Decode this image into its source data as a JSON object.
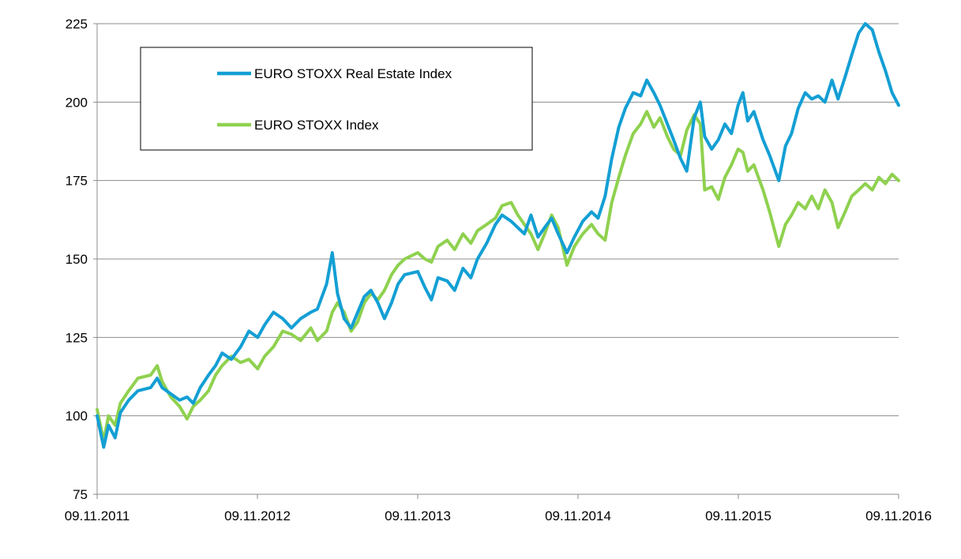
{
  "chart_data": {
    "type": "line",
    "title": "",
    "xlabel": "",
    "ylabel": "",
    "x_ticks": [
      "09.11.2011",
      "09.11.2012",
      "09.11.2013",
      "09.11.2014",
      "09.11.2015",
      "09.11.2016"
    ],
    "y_ticks": [
      75,
      100,
      125,
      150,
      175,
      200,
      225
    ],
    "ylim": [
      75,
      225
    ],
    "xlim": [
      "2011-11-09",
      "2016-11-09"
    ],
    "grid": "horizontal",
    "legend_position": "top-left",
    "series": [
      {
        "name": "EURO STOXX Real Estate Index",
        "color": "#139fd4",
        "points": [
          [
            "2011-11-09",
            100
          ],
          [
            "2011-11-24",
            90
          ],
          [
            "2011-12-05",
            97
          ],
          [
            "2011-12-20",
            93
          ],
          [
            "2012-01-01",
            101
          ],
          [
            "2012-01-20",
            105
          ],
          [
            "2012-02-10",
            108
          ],
          [
            "2012-03-10",
            109
          ],
          [
            "2012-03-25",
            112
          ],
          [
            "2012-04-05",
            109
          ],
          [
            "2012-04-25",
            107
          ],
          [
            "2012-05-15",
            105
          ],
          [
            "2012-06-01",
            106
          ],
          [
            "2012-06-15",
            104
          ],
          [
            "2012-07-01",
            109
          ],
          [
            "2012-07-20",
            113
          ],
          [
            "2012-08-05",
            116
          ],
          [
            "2012-08-20",
            120
          ],
          [
            "2012-09-10",
            118
          ],
          [
            "2012-10-01",
            122
          ],
          [
            "2012-10-20",
            127
          ],
          [
            "2012-11-09",
            125
          ],
          [
            "2012-11-25",
            129
          ],
          [
            "2012-12-15",
            133
          ],
          [
            "2013-01-05",
            131
          ],
          [
            "2013-01-25",
            128
          ],
          [
            "2013-02-15",
            131
          ],
          [
            "2013-03-10",
            133
          ],
          [
            "2013-03-25",
            134
          ],
          [
            "2013-04-15",
            142
          ],
          [
            "2013-04-28",
            152
          ],
          [
            "2013-05-10",
            139
          ],
          [
            "2013-05-25",
            131
          ],
          [
            "2013-06-10",
            128
          ],
          [
            "2013-06-25",
            133
          ],
          [
            "2013-07-10",
            138
          ],
          [
            "2013-07-25",
            140
          ],
          [
            "2013-08-10",
            136
          ],
          [
            "2013-08-25",
            131
          ],
          [
            "2013-09-10",
            136
          ],
          [
            "2013-09-25",
            142
          ],
          [
            "2013-10-10",
            145
          ],
          [
            "2013-11-09",
            146
          ],
          [
            "2013-11-25",
            141
          ],
          [
            "2013-12-10",
            137
          ],
          [
            "2013-12-25",
            144
          ],
          [
            "2014-01-15",
            143
          ],
          [
            "2014-02-01",
            140
          ],
          [
            "2014-02-20",
            147
          ],
          [
            "2014-03-10",
            144
          ],
          [
            "2014-03-25",
            150
          ],
          [
            "2014-04-15",
            155
          ],
          [
            "2014-05-05",
            161
          ],
          [
            "2014-05-20",
            164
          ],
          [
            "2014-06-10",
            162
          ],
          [
            "2014-06-25",
            160
          ],
          [
            "2014-07-10",
            158
          ],
          [
            "2014-07-25",
            164
          ],
          [
            "2014-08-10",
            157
          ],
          [
            "2014-08-25",
            160
          ],
          [
            "2014-09-10",
            163
          ],
          [
            "2014-09-25",
            158
          ],
          [
            "2014-10-15",
            152
          ],
          [
            "2014-11-01",
            157
          ],
          [
            "2014-11-20",
            162
          ],
          [
            "2014-12-10",
            165
          ],
          [
            "2014-12-25",
            163
          ],
          [
            "2015-01-10",
            170
          ],
          [
            "2015-01-25",
            182
          ],
          [
            "2015-02-10",
            192
          ],
          [
            "2015-02-25",
            198
          ],
          [
            "2015-03-15",
            203
          ],
          [
            "2015-04-01",
            202
          ],
          [
            "2015-04-15",
            207
          ],
          [
            "2015-05-01",
            203
          ],
          [
            "2015-05-15",
            199
          ],
          [
            "2015-06-01",
            193
          ],
          [
            "2015-06-15",
            188
          ],
          [
            "2015-07-01",
            182
          ],
          [
            "2015-07-15",
            178
          ],
          [
            "2015-08-01",
            195
          ],
          [
            "2015-08-15",
            200
          ],
          [
            "2015-08-25",
            189
          ],
          [
            "2015-09-10",
            185
          ],
          [
            "2015-09-25",
            188
          ],
          [
            "2015-10-10",
            193
          ],
          [
            "2015-10-25",
            190
          ],
          [
            "2015-11-09",
            199
          ],
          [
            "2015-11-20",
            203
          ],
          [
            "2015-12-01",
            194
          ],
          [
            "2015-12-15",
            197
          ],
          [
            "2016-01-05",
            188
          ],
          [
            "2016-01-20",
            183
          ],
          [
            "2016-02-10",
            175
          ],
          [
            "2016-02-25",
            186
          ],
          [
            "2016-03-10",
            190
          ],
          [
            "2016-03-25",
            198
          ],
          [
            "2016-04-10",
            203
          ],
          [
            "2016-04-25",
            201
          ],
          [
            "2016-05-10",
            202
          ],
          [
            "2016-05-25",
            200
          ],
          [
            "2016-06-10",
            207
          ],
          [
            "2016-06-24",
            201
          ],
          [
            "2016-07-10",
            208
          ],
          [
            "2016-07-25",
            215
          ],
          [
            "2016-08-10",
            222
          ],
          [
            "2016-08-25",
            225
          ],
          [
            "2016-09-10",
            223
          ],
          [
            "2016-09-25",
            216
          ],
          [
            "2016-10-10",
            210
          ],
          [
            "2016-10-25",
            203
          ],
          [
            "2016-11-09",
            199
          ]
        ]
      },
      {
        "name": "EURO STOXX Index",
        "color": "#8fd14f",
        "points": [
          [
            "2011-11-09",
            102
          ],
          [
            "2011-11-24",
            92
          ],
          [
            "2011-12-05",
            100
          ],
          [
            "2011-12-20",
            97
          ],
          [
            "2012-01-01",
            104
          ],
          [
            "2012-01-20",
            108
          ],
          [
            "2012-02-10",
            112
          ],
          [
            "2012-03-10",
            113
          ],
          [
            "2012-03-25",
            116
          ],
          [
            "2012-04-05",
            111
          ],
          [
            "2012-04-25",
            106
          ],
          [
            "2012-05-15",
            103
          ],
          [
            "2012-06-01",
            99
          ],
          [
            "2012-06-15",
            103
          ],
          [
            "2012-07-01",
            105
          ],
          [
            "2012-07-20",
            108
          ],
          [
            "2012-08-05",
            113
          ],
          [
            "2012-08-20",
            116
          ],
          [
            "2012-09-10",
            119
          ],
          [
            "2012-10-01",
            117
          ],
          [
            "2012-10-20",
            118
          ],
          [
            "2012-11-09",
            115
          ],
          [
            "2012-11-25",
            119
          ],
          [
            "2012-12-15",
            122
          ],
          [
            "2013-01-05",
            127
          ],
          [
            "2013-01-25",
            126
          ],
          [
            "2013-02-15",
            124
          ],
          [
            "2013-03-10",
            128
          ],
          [
            "2013-03-25",
            124
          ],
          [
            "2013-04-15",
            127
          ],
          [
            "2013-04-28",
            133
          ],
          [
            "2013-05-10",
            136
          ],
          [
            "2013-05-25",
            133
          ],
          [
            "2013-06-10",
            127
          ],
          [
            "2013-06-25",
            130
          ],
          [
            "2013-07-10",
            136
          ],
          [
            "2013-07-25",
            139
          ],
          [
            "2013-08-10",
            137
          ],
          [
            "2013-08-25",
            140
          ],
          [
            "2013-09-10",
            145
          ],
          [
            "2013-09-25",
            148
          ],
          [
            "2013-10-10",
            150
          ],
          [
            "2013-11-09",
            152
          ],
          [
            "2013-11-25",
            150
          ],
          [
            "2013-12-10",
            149
          ],
          [
            "2013-12-25",
            154
          ],
          [
            "2014-01-15",
            156
          ],
          [
            "2014-02-01",
            153
          ],
          [
            "2014-02-20",
            158
          ],
          [
            "2014-03-10",
            155
          ],
          [
            "2014-03-25",
            159
          ],
          [
            "2014-04-15",
            161
          ],
          [
            "2014-05-05",
            163
          ],
          [
            "2014-05-20",
            167
          ],
          [
            "2014-06-10",
            168
          ],
          [
            "2014-06-25",
            164
          ],
          [
            "2014-07-10",
            161
          ],
          [
            "2014-07-25",
            158
          ],
          [
            "2014-08-10",
            153
          ],
          [
            "2014-08-25",
            158
          ],
          [
            "2014-09-10",
            164
          ],
          [
            "2014-09-25",
            160
          ],
          [
            "2014-10-15",
            148
          ],
          [
            "2014-11-01",
            154
          ],
          [
            "2014-11-20",
            158
          ],
          [
            "2014-12-10",
            161
          ],
          [
            "2014-12-25",
            158
          ],
          [
            "2015-01-10",
            156
          ],
          [
            "2015-01-25",
            168
          ],
          [
            "2015-02-10",
            176
          ],
          [
            "2015-02-25",
            183
          ],
          [
            "2015-03-15",
            190
          ],
          [
            "2015-04-01",
            193
          ],
          [
            "2015-04-15",
            197
          ],
          [
            "2015-05-01",
            192
          ],
          [
            "2015-05-15",
            195
          ],
          [
            "2015-06-01",
            189
          ],
          [
            "2015-06-15",
            185
          ],
          [
            "2015-07-01",
            183
          ],
          [
            "2015-07-15",
            191
          ],
          [
            "2015-08-01",
            196
          ],
          [
            "2015-08-15",
            193
          ],
          [
            "2015-08-25",
            172
          ],
          [
            "2015-09-10",
            173
          ],
          [
            "2015-09-25",
            169
          ],
          [
            "2015-10-10",
            176
          ],
          [
            "2015-10-25",
            180
          ],
          [
            "2015-11-09",
            185
          ],
          [
            "2015-11-20",
            184
          ],
          [
            "2015-12-01",
            178
          ],
          [
            "2015-12-15",
            180
          ],
          [
            "2016-01-05",
            172
          ],
          [
            "2016-01-20",
            165
          ],
          [
            "2016-02-10",
            154
          ],
          [
            "2016-02-25",
            161
          ],
          [
            "2016-03-10",
            164
          ],
          [
            "2016-03-25",
            168
          ],
          [
            "2016-04-10",
            166
          ],
          [
            "2016-04-25",
            170
          ],
          [
            "2016-05-10",
            166
          ],
          [
            "2016-05-25",
            172
          ],
          [
            "2016-06-10",
            168
          ],
          [
            "2016-06-24",
            160
          ],
          [
            "2016-07-10",
            165
          ],
          [
            "2016-07-25",
            170
          ],
          [
            "2016-08-10",
            172
          ],
          [
            "2016-08-25",
            174
          ],
          [
            "2016-09-10",
            172
          ],
          [
            "2016-09-25",
            176
          ],
          [
            "2016-10-10",
            174
          ],
          [
            "2016-10-25",
            177
          ],
          [
            "2016-11-09",
            175
          ]
        ]
      }
    ]
  }
}
